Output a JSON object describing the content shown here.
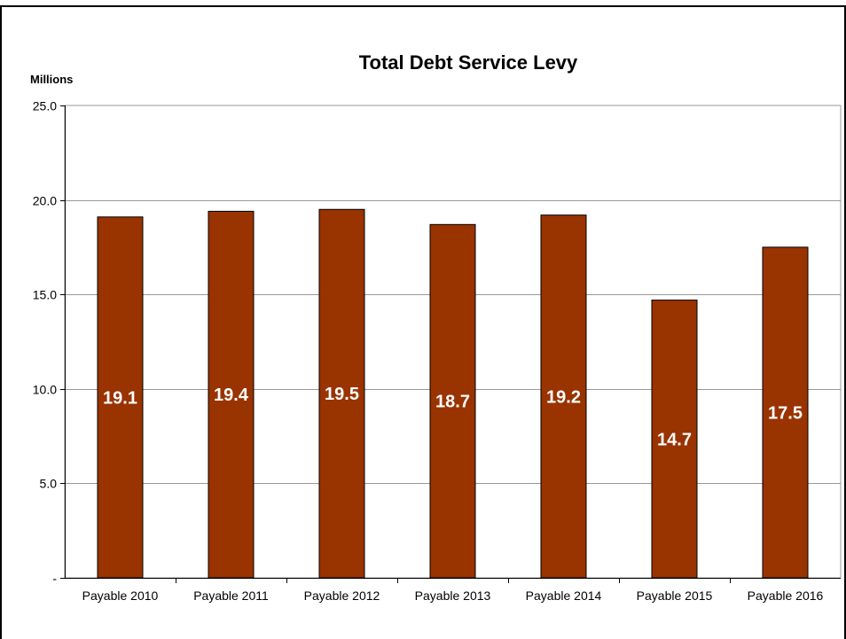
{
  "chart_data": {
    "type": "bar",
    "title": "Total Debt Service Levy",
    "unit_label": "Millions",
    "xlabel": "",
    "ylabel": "",
    "categories": [
      "Payable 2010",
      "Payable 2011",
      "Payable 2012",
      "Payable 2013",
      "Payable 2014",
      "Payable 2015",
      "Payable 2016"
    ],
    "values": [
      19.1,
      19.4,
      19.5,
      18.7,
      19.2,
      14.7,
      17.5
    ],
    "data_labels": [
      "19.1",
      "19.4",
      "19.5",
      "18.7",
      "19.2",
      "14.7",
      "17.5"
    ],
    "ylim": [
      0,
      25
    ],
    "y_ticks": [
      0,
      5,
      10,
      15,
      20,
      25
    ],
    "y_tick_labels": [
      "-",
      "5.0",
      "10.0",
      "15.0",
      "20.0",
      "25.0"
    ],
    "grid": true,
    "legend": "none",
    "bar_color": "#993300"
  }
}
